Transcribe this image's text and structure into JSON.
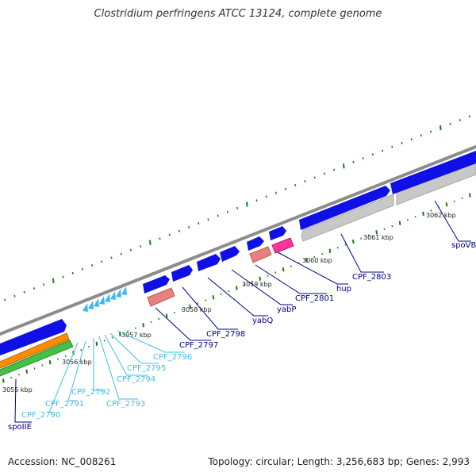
{
  "title": "Clostridium perfringens ATCC 13124, complete genome",
  "footer": {
    "accession": "Accession: NC_008261",
    "topology": "Topology: circular; Length: 3,256,683 bp; Genes: 2,993"
  },
  "colors": {
    "backbone": "#8c8c8c",
    "cds_forward": "#1010e6",
    "cds_reverse": "#c8c8c8",
    "rna_pink": "#ff3399",
    "rna_salmon": "#e98080",
    "arrow_cyan": "#3db8f0",
    "tick": "#1a7a1a",
    "strip_orange": "#ff8c00",
    "strip_green": "#44c044",
    "label_dark": "#00008b",
    "label_light": "#40bfe6"
  },
  "kbp_labels": [
    "3055 kbp",
    "3056 kbp",
    "3057 kbp",
    "3058 kbp",
    "3059 kbp",
    "3060 kbp",
    "3061 kbp",
    "3062 kbp"
  ],
  "genes": [
    {
      "label": "spoIIE",
      "color": "dark"
    },
    {
      "label": "CPF_2790",
      "color": "light"
    },
    {
      "label": "CPF_2791",
      "color": "light"
    },
    {
      "label": "CPF_2792",
      "color": "light"
    },
    {
      "label": "CPF_2793",
      "color": "light"
    },
    {
      "label": "CPF_2794",
      "color": "light"
    },
    {
      "label": "CPF_2795",
      "color": "light"
    },
    {
      "label": "CPF_2796",
      "color": "light"
    },
    {
      "label": "CPF_2797",
      "color": "dark"
    },
    {
      "label": "CPF_2798",
      "color": "dark"
    },
    {
      "label": "yabQ",
      "color": "dark"
    },
    {
      "label": "yabP",
      "color": "dark"
    },
    {
      "label": "CPF_2801",
      "color": "dark"
    },
    {
      "label": "hup",
      "color": "dark"
    },
    {
      "label": "CPF_2803",
      "color": "dark"
    },
    {
      "label": "spoVB",
      "color": "dark"
    }
  ]
}
